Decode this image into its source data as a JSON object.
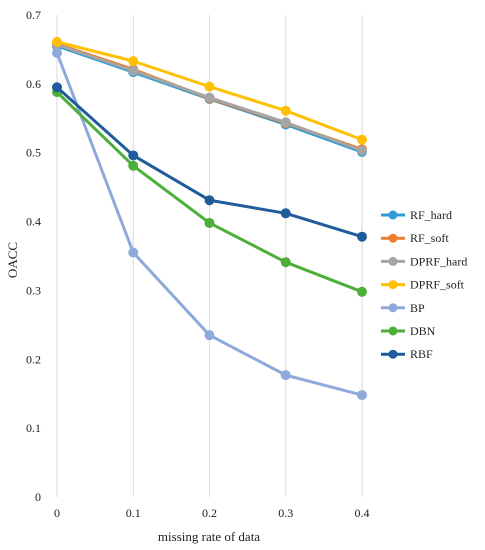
{
  "chart_data": {
    "type": "line",
    "title": "",
    "xlabel": "missing  rate of data",
    "ylabel": "OACC",
    "x": [
      0,
      0.1,
      0.2,
      0.3,
      0.4
    ],
    "x_tick_labels": [
      "0",
      "0.1",
      "0.2",
      "0.3",
      "0.4"
    ],
    "xlim": [
      0,
      0.4
    ],
    "ylim": [
      0,
      0.7
    ],
    "y_ticks": [
      0,
      0.1,
      0.2,
      0.3,
      0.4,
      0.5,
      0.6,
      0.7
    ],
    "y_tick_labels": [
      "0",
      "0.1",
      "0.2",
      "0.3",
      "0.4",
      "0.5",
      "0.6",
      "0.7"
    ],
    "grid": "vertical",
    "legend_position": "right",
    "series": [
      {
        "name": "RF_hard",
        "color": "#2E9BD6",
        "values": [
          0.655,
          0.617,
          0.578,
          0.541,
          0.501
        ]
      },
      {
        "name": "RF_soft",
        "color": "#ED7D31",
        "values": [
          0.658,
          0.621,
          0.579,
          0.543,
          0.505
        ]
      },
      {
        "name": "DPRF_hard",
        "color": "#A5A5A5",
        "values": [
          0.657,
          0.619,
          0.58,
          0.544,
          0.503
        ]
      },
      {
        "name": "DPRF_soft",
        "color": "#FFC000",
        "values": [
          0.661,
          0.633,
          0.596,
          0.561,
          0.519
        ]
      },
      {
        "name": "BP",
        "color": "#8EAADB",
        "values": [
          0.645,
          0.355,
          0.235,
          0.177,
          0.148
        ]
      },
      {
        "name": "DBN",
        "color": "#4DAF3A",
        "values": [
          0.588,
          0.481,
          0.398,
          0.341,
          0.298
        ]
      },
      {
        "name": "RBF",
        "color": "#1F5C99",
        "values": [
          0.595,
          0.496,
          0.431,
          0.412,
          0.378
        ]
      }
    ]
  }
}
